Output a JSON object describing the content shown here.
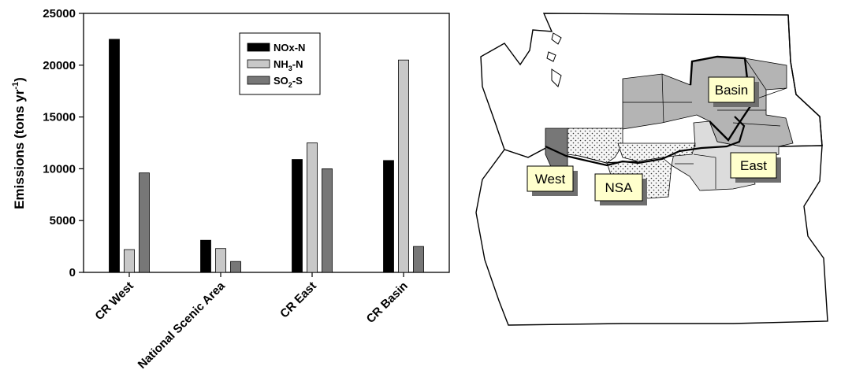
{
  "chart_data": {
    "type": "bar",
    "categories": [
      "CR West",
      "National Scenic Area",
      "CR East",
      "CR Basin"
    ],
    "series": [
      {
        "name": "NOx-N",
        "values": [
          22500,
          3100,
          10900,
          10800
        ],
        "color": "#000000"
      },
      {
        "name": "NH3-N",
        "values": [
          2200,
          2300,
          12500,
          20500
        ],
        "color": "#c8c8c8"
      },
      {
        "name": "SO2-S",
        "values": [
          9600,
          1050,
          10000,
          2500
        ],
        "color": "#777777"
      }
    ],
    "legend": {
      "placement": "top-center",
      "entries": [
        {
          "main": "NOx-N",
          "sub": "",
          "tail": ""
        },
        {
          "main": "NH",
          "sub": "3",
          "tail": "-N"
        },
        {
          "main": "SO",
          "sub": "2",
          "tail": "-S"
        }
      ]
    },
    "ylabel": {
      "main": "Emissions (tons yr",
      "sup": "-1",
      "tail": ")"
    },
    "ylim": [
      0,
      25000
    ],
    "yticks": [
      "0",
      "5000",
      "10000",
      "15000",
      "20000",
      "25000"
    ],
    "ytick_values": [
      0,
      5000,
      10000,
      15000,
      20000,
      25000
    ],
    "grid": false
  },
  "map": {
    "region_labels": {
      "basin": "Basin",
      "west": "West",
      "nsa": "NSA",
      "east": "East"
    },
    "colors": {
      "basin_fill": "#b4b4b4",
      "east_fill": "#dcdcdc",
      "west_fill": "#777777",
      "nsa_fill": "#f4f4f4",
      "label_bg": "#ffffcc",
      "label_shadow": "#6e6e6e"
    }
  }
}
